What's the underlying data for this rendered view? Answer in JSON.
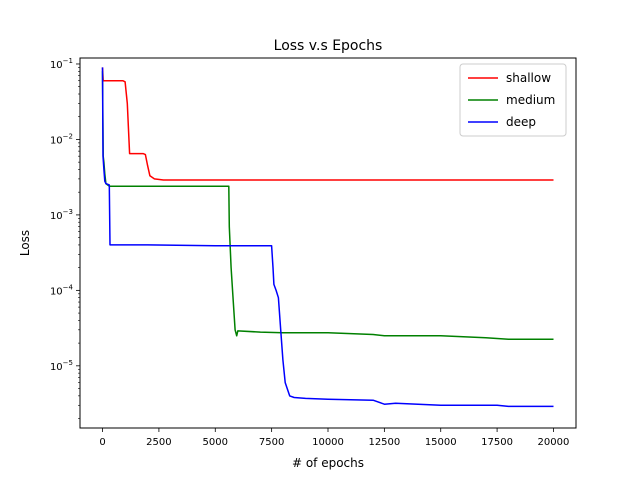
{
  "chart_data": {
    "type": "line",
    "title": "Loss v.s Epochs",
    "xlabel": "# of epochs",
    "ylabel": "Loss",
    "xlim": [
      -1000,
      21000
    ],
    "ylim": [
      1.5e-06,
      0.12
    ],
    "yscale": "log",
    "grid": false,
    "legend_position": "top-right",
    "x_ticks": [
      0,
      2500,
      5000,
      7500,
      10000,
      12500,
      15000,
      17500,
      20000
    ],
    "x_tick_labels": [
      "0",
      "2500",
      "5000",
      "7500",
      "10000",
      "12500",
      "15000",
      "17500",
      "20000"
    ],
    "y_ticks": [
      1e-05,
      0.0001,
      0.001,
      0.01,
      0.1
    ],
    "y_tick_labels": [
      {
        "base": "10",
        "exp": "−5"
      },
      {
        "base": "10",
        "exp": "−4"
      },
      {
        "base": "10",
        "exp": "−3"
      },
      {
        "base": "10",
        "exp": "−2"
      },
      {
        "base": "10",
        "exp": "−1"
      }
    ],
    "series": [
      {
        "name": "shallow",
        "color": "#ff0000",
        "points": [
          [
            0,
            0.09
          ],
          [
            30,
            0.06
          ],
          [
            900,
            0.06
          ],
          [
            1000,
            0.058
          ],
          [
            1100,
            0.03
          ],
          [
            1200,
            0.0065
          ],
          [
            1800,
            0.0065
          ],
          [
            1900,
            0.0063
          ],
          [
            2000,
            0.0045
          ],
          [
            2100,
            0.0033
          ],
          [
            2300,
            0.003
          ],
          [
            2700,
            0.0029
          ],
          [
            5000,
            0.0029
          ],
          [
            10000,
            0.0029
          ],
          [
            15000,
            0.0029
          ],
          [
            20000,
            0.0029
          ]
        ]
      },
      {
        "name": "medium",
        "color": "#008000",
        "points": [
          [
            0,
            0.08
          ],
          [
            30,
            0.006
          ],
          [
            60,
            0.005
          ],
          [
            100,
            0.0035
          ],
          [
            150,
            0.0026
          ],
          [
            300,
            0.0024
          ],
          [
            5000,
            0.0024
          ],
          [
            5600,
            0.0024
          ],
          [
            5620,
            0.0007
          ],
          [
            5700,
            0.0002
          ],
          [
            5800,
            7e-05
          ],
          [
            5880,
            3e-05
          ],
          [
            5950,
            2.5e-05
          ],
          [
            6000,
            2.9e-05
          ],
          [
            7000,
            2.8e-05
          ],
          [
            8000,
            2.75e-05
          ],
          [
            10000,
            2.75e-05
          ],
          [
            12000,
            2.6e-05
          ],
          [
            12500,
            2.5e-05
          ],
          [
            15000,
            2.5e-05
          ],
          [
            17000,
            2.35e-05
          ],
          [
            18000,
            2.25e-05
          ],
          [
            20000,
            2.25e-05
          ]
        ]
      },
      {
        "name": "deep",
        "color": "#0000ff",
        "points": [
          [
            0,
            0.09
          ],
          [
            20,
            0.006
          ],
          [
            60,
            0.004
          ],
          [
            100,
            0.0028
          ],
          [
            150,
            0.0026
          ],
          [
            300,
            0.0025
          ],
          [
            330,
            0.0004
          ],
          [
            2000,
            0.0004
          ],
          [
            5000,
            0.00039
          ],
          [
            7500,
            0.00039
          ],
          [
            7560,
            0.0002
          ],
          [
            7600,
            0.00012
          ],
          [
            7700,
            0.0001
          ],
          [
            7800,
            8e-05
          ],
          [
            7900,
            3e-05
          ],
          [
            8000,
            1.2e-05
          ],
          [
            8100,
            6e-06
          ],
          [
            8300,
            4e-06
          ],
          [
            8500,
            3.8e-06
          ],
          [
            9000,
            3.7e-06
          ],
          [
            10000,
            3.6e-06
          ],
          [
            12000,
            3.5e-06
          ],
          [
            12500,
            3.1e-06
          ],
          [
            13000,
            3.2e-06
          ],
          [
            15000,
            3e-06
          ],
          [
            17500,
            3e-06
          ],
          [
            18000,
            2.9e-06
          ],
          [
            20000,
            2.9e-06
          ]
        ]
      }
    ]
  }
}
